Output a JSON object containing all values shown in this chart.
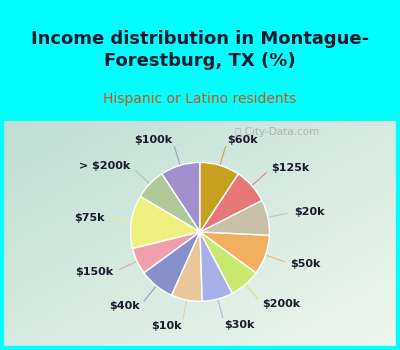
{
  "title_line1": "Income distribution in Montague-",
  "title_line2": "Forestburg, TX (%)",
  "subtitle": "Hispanic or Latino residents",
  "watermark": "ⓘ City-Data.com",
  "background_top": "#00FFFF",
  "background_chart_left": "#d4ede4",
  "background_chart_right": "#e8f8f0",
  "title_color": "#1a1a2e",
  "subtitle_color": "#d45010",
  "slices": [
    {
      "label": "$100k",
      "value": 9,
      "color": "#a090cc"
    },
    {
      "label": "> $200k",
      "value": 7,
      "color": "#b0c898"
    },
    {
      "label": "$75k",
      "value": 12,
      "color": "#f0f080"
    },
    {
      "label": "$150k",
      "value": 6,
      "color": "#f0a0aa"
    },
    {
      "label": "$40k",
      "value": 8,
      "color": "#8890cc"
    },
    {
      "label": "$10k",
      "value": 7,
      "color": "#e8c898"
    },
    {
      "label": "$30k",
      "value": 7,
      "color": "#a8b0e8"
    },
    {
      "label": "$200k",
      "value": 7,
      "color": "#c8e870"
    },
    {
      "label": "$50k",
      "value": 9,
      "color": "#f0b060"
    },
    {
      "label": "$20k",
      "value": 8,
      "color": "#c8c0a8"
    },
    {
      "label": "$125k",
      "value": 8,
      "color": "#e87878"
    },
    {
      "label": "$60k",
      "value": 9,
      "color": "#c8a020"
    }
  ],
  "title_fontsize": 13,
  "subtitle_fontsize": 10,
  "label_fontsize": 8,
  "watermark_fontsize": 7.5
}
